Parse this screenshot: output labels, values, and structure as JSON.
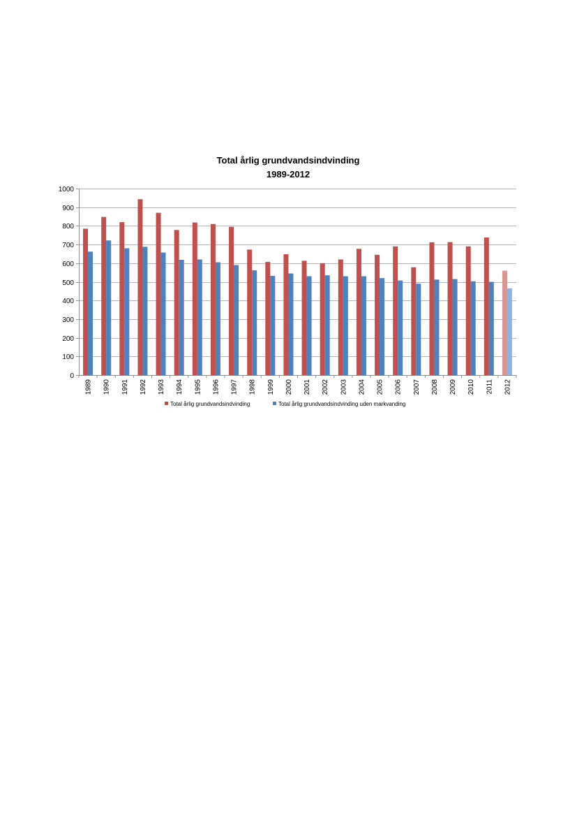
{
  "chart_data": {
    "type": "bar",
    "title": "Total årlig grundvandsindvinding",
    "subtitle": "1989-2012",
    "xlabel": "",
    "ylabel": "",
    "ylim": [
      0,
      1000
    ],
    "yticks": [
      0,
      100,
      200,
      300,
      400,
      500,
      600,
      700,
      800,
      900,
      1000
    ],
    "grid": true,
    "legend_position": "bottom",
    "categories": [
      "1989",
      "1990",
      "1991",
      "1992",
      "1993",
      "1994",
      "1995",
      "1996",
      "1997",
      "1998",
      "1999",
      "2000",
      "2001",
      "2002",
      "2003",
      "2004",
      "2005",
      "2006",
      "2007",
      "2008",
      "2009",
      "2010",
      "2011",
      "2012"
    ],
    "highlighted_category": "2012",
    "series": [
      {
        "name": "Total årlig grundvandsindvinding",
        "color": "#c0504d",
        "highlight_color": "#d99694",
        "values": [
          785,
          848,
          820,
          943,
          870,
          778,
          818,
          810,
          795,
          673,
          607,
          648,
          613,
          600,
          620,
          677,
          645,
          690,
          578,
          712,
          713,
          690,
          738,
          560
        ]
      },
      {
        "name": "Total årlig grundvandsindvinding uden markvanding",
        "color": "#4f81bd",
        "highlight_color": "#8db3e2",
        "values": [
          662,
          722,
          680,
          688,
          657,
          618,
          620,
          605,
          590,
          562,
          532,
          545,
          530,
          535,
          530,
          530,
          520,
          507,
          490,
          512,
          515,
          503,
          500,
          465
        ]
      }
    ]
  }
}
